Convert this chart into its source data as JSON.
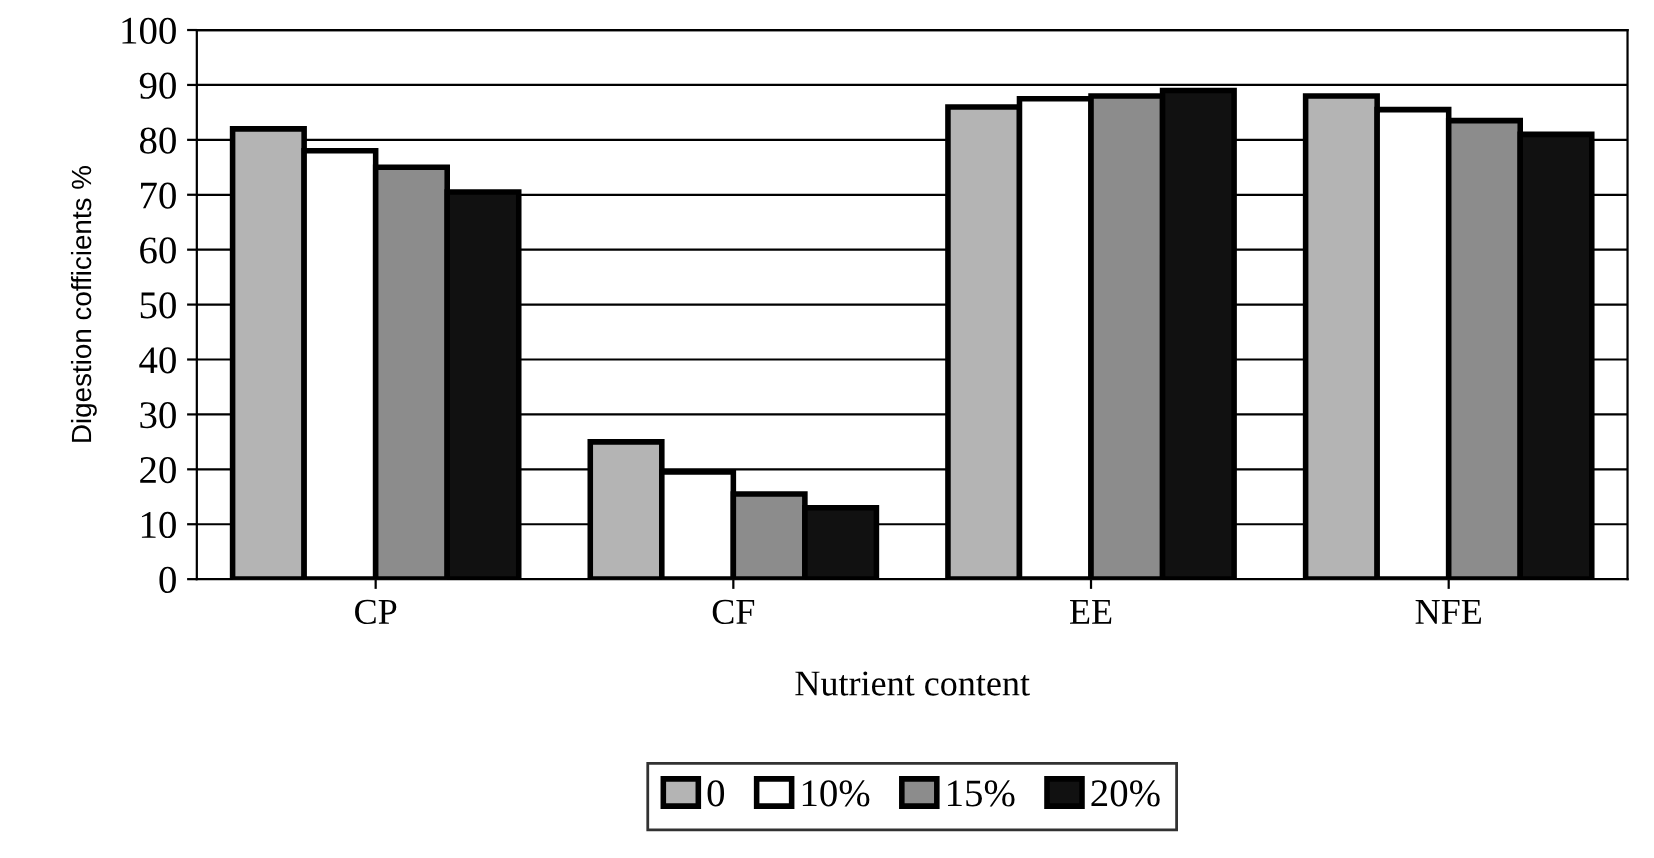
{
  "chart_data": {
    "type": "bar",
    "xlabel": "Nutrient content",
    "ylabel": "Digestion cofficients %",
    "categories": [
      "CP",
      "CF",
      "EE",
      "NFE"
    ],
    "series": [
      {
        "name": "0",
        "color": "#b4b4b4",
        "values": [
          82,
          25,
          86,
          88
        ]
      },
      {
        "name": "10%",
        "color": "#ffffff",
        "values": [
          78,
          19.5,
          87.5,
          85.5
        ]
      },
      {
        "name": "15%",
        "color": "#8c8c8c",
        "values": [
          75,
          15.5,
          88,
          83.5
        ]
      },
      {
        "name": "20%",
        "color": "#111111",
        "values": [
          70.5,
          13,
          89,
          81
        ]
      }
    ],
    "ylim": [
      0,
      100
    ],
    "yticks": [
      0,
      10,
      20,
      30,
      40,
      50,
      60,
      70,
      80,
      90,
      100
    ],
    "grid": "y",
    "legend": "bottom"
  }
}
